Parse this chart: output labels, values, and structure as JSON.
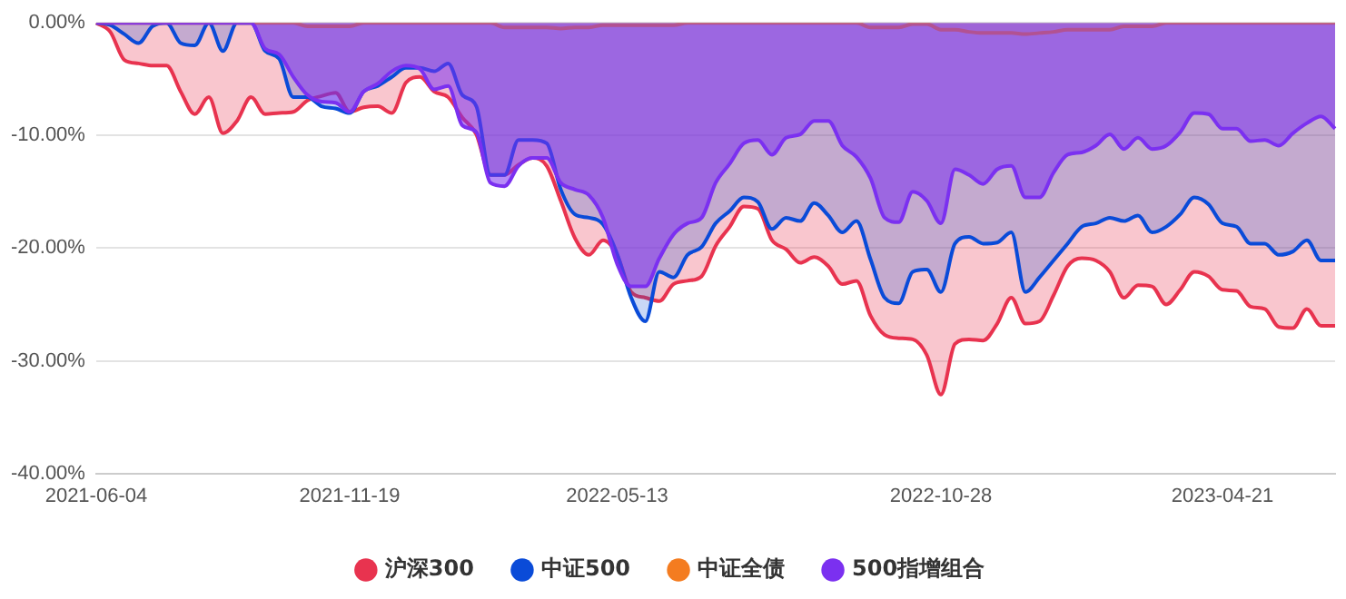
{
  "chart_data": {
    "type": "area",
    "categories": [
      "2021-06-04",
      null,
      null,
      null,
      null,
      null,
      null,
      null,
      null,
      null,
      null,
      null,
      null,
      null,
      null,
      null,
      null,
      null,
      "2021-11-19",
      null,
      null,
      null,
      null,
      null,
      null,
      null,
      null,
      null,
      null,
      null,
      null,
      null,
      null,
      null,
      null,
      null,
      null,
      "2022-05-13",
      null,
      null,
      null,
      null,
      null,
      null,
      null,
      null,
      null,
      null,
      null,
      null,
      null,
      null,
      null,
      null,
      null,
      null,
      null,
      null,
      null,
      null,
      "2022-10-28",
      null,
      null,
      null,
      null,
      null,
      null,
      null,
      null,
      null,
      null,
      null,
      null,
      null,
      null,
      null,
      null,
      null,
      null,
      null,
      "2023-04-21",
      null,
      null,
      null,
      null,
      null,
      null,
      null,
      null
    ],
    "series": [
      {
        "name": "沪深300",
        "color": "#e8334f",
        "values": [
          0,
          -0.8,
          -3.3,
          -3.6,
          -3.8,
          -3.8,
          -6.1,
          -8.1,
          -6.6,
          -9.8,
          -8.7,
          -6.6,
          -8.1,
          -8.0,
          -7.9,
          -6.9,
          -6.5,
          -6.2,
          -7.9,
          -7.5,
          -7.4,
          -8.0,
          -5.3,
          -4.8,
          -6.1,
          -6.6,
          -8.4,
          -9.9,
          -13.5,
          -13.5,
          -12.6,
          -12.0,
          -12.7,
          -15.8,
          -19.1,
          -20.6,
          -19.3,
          -20.6,
          -23.9,
          -24.4,
          -24.7,
          -23.2,
          -22.9,
          -22.5,
          -19.8,
          -18.1,
          -16.3,
          -16.5,
          -19.3,
          -20.1,
          -21.3,
          -20.8,
          -21.6,
          -23.2,
          -22.9,
          -26.0,
          -27.7,
          -28.0,
          -28.1,
          -29.5,
          -33.0,
          -28.5,
          -28.1,
          -28.2,
          -26.7,
          -24.4,
          -26.7,
          -26.5,
          -24.2,
          -21.6,
          -20.9,
          -21.1,
          -22.1,
          -24.4,
          -23.3,
          -23.4,
          -25.0,
          -23.7,
          -22.1,
          -22.5,
          -23.7,
          -23.8,
          -25.2,
          -25.4,
          -27.0,
          -27.1,
          -25.4,
          -26.9,
          -26.9
        ]
      },
      {
        "name": "中证500",
        "color": "#0a4bd8",
        "values": [
          0,
          -0.2,
          -1.0,
          -1.8,
          -0.3,
          0,
          -1.8,
          -2.0,
          0,
          -2.5,
          0,
          0,
          -2.5,
          -3.2,
          -6.6,
          -6.6,
          -7.4,
          -7.6,
          -8.0,
          -6.1,
          -5.6,
          -4.8,
          -4.0,
          -4.0,
          -4.3,
          -3.6,
          -6.4,
          -7.4,
          -13.5,
          -13.5,
          -10.4,
          -10.4,
          -10.7,
          -14.8,
          -17.0,
          -17.3,
          -17.9,
          -20.5,
          -24.4,
          -26.5,
          -22.1,
          -22.6,
          -20.6,
          -19.9,
          -17.8,
          -16.7,
          -15.5,
          -15.9,
          -18.3,
          -17.3,
          -17.6,
          -16.0,
          -17.1,
          -18.6,
          -17.6,
          -21.0,
          -24.4,
          -24.9,
          -22.1,
          -21.9,
          -23.9,
          -19.6,
          -19.0,
          -19.6,
          -19.5,
          -18.6,
          -23.9,
          -22.6,
          -21.1,
          -19.6,
          -18.1,
          -17.8,
          -17.3,
          -17.6,
          -17.1,
          -18.6,
          -18.1,
          -17.0,
          -15.5,
          -16.1,
          -17.8,
          -18.1,
          -19.6,
          -19.6,
          -20.6,
          -20.3,
          -19.3,
          -21.1,
          -21.1
        ]
      },
      {
        "name": "中证全债",
        "color": "#f47c20",
        "values": [
          0,
          0,
          0,
          0,
          0,
          0,
          0,
          0,
          0,
          0,
          0,
          0,
          0,
          0,
          0,
          -0.3,
          -0.3,
          -0.3,
          -0.3,
          0,
          0,
          0,
          0,
          0,
          0,
          0,
          0,
          0,
          0,
          -0.4,
          -0.4,
          -0.4,
          -0.4,
          -0.5,
          -0.4,
          -0.4,
          -0.2,
          -0.2,
          -0.2,
          -0.2,
          -0.2,
          -0.2,
          0,
          0,
          0,
          0,
          0,
          0,
          0,
          0,
          0,
          0,
          0,
          0,
          0,
          -0.4,
          -0.4,
          -0.4,
          -0.1,
          -0.1,
          -0.6,
          -0.6,
          -0.8,
          -0.9,
          -0.9,
          -0.9,
          -1.0,
          -0.9,
          -0.8,
          -0.6,
          -0.6,
          -0.6,
          -0.6,
          -0.3,
          -0.3,
          -0.3,
          0,
          0,
          0,
          0,
          0,
          0,
          0,
          0,
          0,
          0,
          0,
          0,
          0
        ]
      },
      {
        "name": "500指增组合",
        "color": "#7b30f0",
        "values": [
          0,
          0,
          0,
          0,
          0,
          0,
          0,
          0,
          0,
          0,
          0,
          0,
          -2.3,
          -2.8,
          -4.8,
          -6.4,
          -7.0,
          -7.1,
          -7.9,
          -6.1,
          -5.4,
          -4.3,
          -3.8,
          -4.1,
          -5.9,
          -5.6,
          -9.1,
          -9.7,
          -14.2,
          -14.5,
          -12.7,
          -12.0,
          -12.0,
          -14.2,
          -14.8,
          -15.3,
          -17.3,
          -21.4,
          -23.4,
          -23.4,
          -20.9,
          -18.8,
          -17.8,
          -17.3,
          -14.2,
          -12.5,
          -10.7,
          -10.4,
          -11.7,
          -10.2,
          -9.9,
          -8.7,
          -8.7,
          -10.9,
          -11.9,
          -13.8,
          -17.3,
          -17.7,
          -15.0,
          -15.8,
          -17.8,
          -13.0,
          -13.5,
          -14.3,
          -13.0,
          -12.7,
          -15.5,
          -15.5,
          -13.3,
          -11.7,
          -11.5,
          -10.9,
          -9.9,
          -11.2,
          -10.2,
          -11.2,
          -10.9,
          -9.7,
          -8.0,
          -8.1,
          -9.4,
          -9.4,
          -10.5,
          -10.4,
          -10.9,
          -9.8,
          -8.9,
          -8.3,
          -9.4
        ]
      }
    ],
    "ylim": [
      -40,
      0
    ],
    "yticks": [
      {
        "value": -40,
        "label": "-40.00%"
      },
      {
        "value": -30,
        "label": "-30.00%"
      },
      {
        "value": -20,
        "label": "-20.00%"
      },
      {
        "value": -10,
        "label": "-10.00%"
      },
      {
        "value": 0,
        "label": "0.00%"
      }
    ],
    "grid": "y",
    "legend": "bottom",
    "marker": "none",
    "line_style": "solid"
  }
}
